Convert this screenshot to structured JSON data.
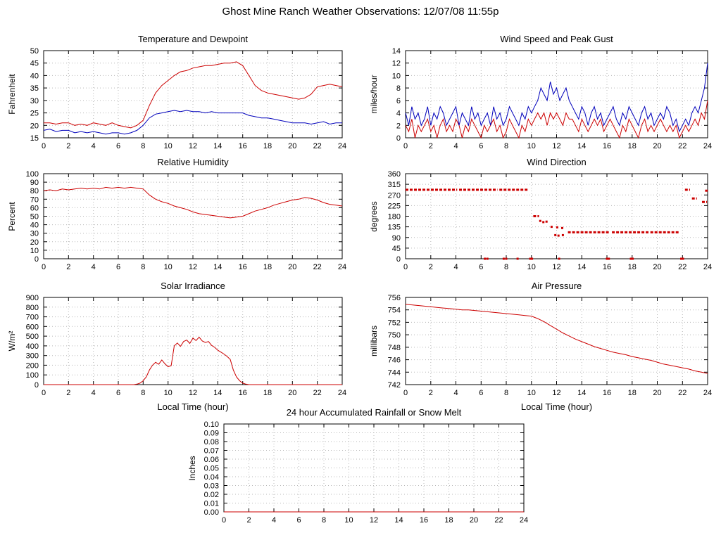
{
  "page": {
    "title": "Ghost Mine Ranch Weather Observations: 12/07/08 11:55p"
  },
  "chart_data": [
    {
      "type": "line",
      "title": "Temperature and Dewpoint",
      "ylabel": "Fahrenheit",
      "xlabel": "",
      "xlim": [
        0,
        24
      ],
      "ylim": [
        15,
        50
      ],
      "xticks": [
        0,
        2,
        4,
        6,
        8,
        10,
        12,
        14,
        16,
        18,
        20,
        22,
        24
      ],
      "xtick_labels": [
        "0",
        "2",
        "4",
        "6",
        "8",
        "10",
        "12",
        "14",
        "16",
        "18",
        "20",
        "22",
        "24"
      ],
      "yticks": [
        15,
        20,
        25,
        30,
        35,
        40,
        45,
        50
      ],
      "ytick_labels": [
        "15",
        "20",
        "25",
        "30",
        "35",
        "40",
        "45",
        "50"
      ],
      "series": [
        {
          "name": "temperature",
          "color": "#cc0000",
          "x0": 0,
          "dx": 0.5,
          "y": [
            21,
            21,
            20.5,
            21,
            21,
            20,
            20.5,
            20,
            21,
            20.5,
            20,
            21,
            20,
            19.5,
            19,
            20,
            22,
            28,
            33,
            36,
            38,
            40,
            41.5,
            42,
            43,
            43.5,
            44,
            44,
            44.5,
            45,
            45,
            45.5,
            44,
            40,
            36,
            34,
            33,
            32.5,
            32,
            31.5,
            31,
            30.5,
            31,
            32.5,
            35.5,
            36,
            36.5,
            36,
            35.5
          ]
        },
        {
          "name": "dewpoint",
          "color": "#0000bb",
          "x0": 0,
          "dx": 0.5,
          "y": [
            18,
            18.5,
            17.5,
            18,
            18,
            17,
            17.5,
            17,
            17.5,
            17,
            16.5,
            17,
            17,
            16.5,
            17,
            18,
            20,
            23,
            24.5,
            25,
            25.5,
            26,
            25.5,
            26,
            25.5,
            25.5,
            25,
            25.5,
            25,
            25,
            25,
            25,
            25,
            24,
            23.5,
            23,
            23,
            22.5,
            22,
            21.5,
            21,
            21,
            21,
            20.5,
            21,
            21.5,
            20.5,
            21,
            21
          ]
        }
      ]
    },
    {
      "type": "line",
      "title": "Wind Speed and Peak Gust",
      "ylabel": "miles/hour",
      "xlabel": "",
      "xlim": [
        0,
        24
      ],
      "ylim": [
        0,
        14
      ],
      "xticks": [
        0,
        2,
        4,
        6,
        8,
        10,
        12,
        14,
        16,
        18,
        20,
        22,
        24
      ],
      "xtick_labels": [
        "0",
        "2",
        "4",
        "6",
        "8",
        "10",
        "12",
        "14",
        "16",
        "18",
        "20",
        "22",
        "24"
      ],
      "yticks": [
        0,
        2,
        4,
        6,
        8,
        10,
        12,
        14
      ],
      "ytick_labels": [
        "0",
        "2",
        "4",
        "6",
        "8",
        "10",
        "12",
        "14"
      ],
      "series": [
        {
          "name": "wind-speed",
          "color": "#cc0000",
          "x0": 0,
          "dx": 0.25,
          "y": [
            2,
            1,
            3,
            0,
            2,
            1,
            2,
            3,
            1,
            2,
            0,
            2,
            3,
            1,
            2,
            1,
            3,
            2,
            0,
            2,
            1,
            3,
            2,
            1,
            0,
            2,
            1,
            2,
            3,
            1,
            2,
            0,
            1,
            3,
            2,
            1,
            0,
            2,
            1,
            3,
            2,
            3,
            4,
            3,
            4,
            2,
            4,
            3,
            4,
            3,
            2,
            4,
            3,
            3,
            2,
            1,
            3,
            2,
            1,
            2,
            3,
            2,
            3,
            1,
            2,
            3,
            2,
            1,
            0,
            2,
            1,
            3,
            2,
            1,
            0,
            2,
            3,
            1,
            2,
            1,
            2,
            3,
            2,
            1,
            2,
            1,
            2,
            0,
            1,
            2,
            1,
            2,
            3,
            2,
            4,
            3,
            6
          ]
        },
        {
          "name": "peak-gust",
          "color": "#0000bb",
          "x0": 0,
          "dx": 0.25,
          "y": [
            4,
            2,
            5,
            3,
            4,
            2,
            3,
            5,
            2,
            4,
            3,
            5,
            4,
            2,
            3,
            4,
            5,
            2,
            4,
            3,
            2,
            5,
            3,
            4,
            2,
            3,
            4,
            2,
            5,
            3,
            4,
            2,
            3,
            5,
            4,
            3,
            2,
            4,
            3,
            5,
            4,
            5,
            6,
            8,
            7,
            6,
            9,
            7,
            8,
            6,
            7,
            8,
            6,
            5,
            4,
            3,
            5,
            4,
            2,
            4,
            5,
            3,
            4,
            2,
            3,
            4,
            5,
            3,
            2,
            4,
            3,
            5,
            4,
            3,
            2,
            4,
            5,
            3,
            4,
            2,
            3,
            4,
            3,
            5,
            4,
            2,
            3,
            1,
            2,
            3,
            2,
            4,
            5,
            4,
            6,
            8,
            12
          ]
        }
      ]
    },
    {
      "type": "line",
      "title": "Relative Humidity",
      "ylabel": "Percent",
      "xlabel": "",
      "xlim": [
        0,
        24
      ],
      "ylim": [
        0,
        100
      ],
      "xticks": [
        0,
        2,
        4,
        6,
        8,
        10,
        12,
        14,
        16,
        18,
        20,
        22,
        24
      ],
      "xtick_labels": [
        "0",
        "2",
        "4",
        "6",
        "8",
        "10",
        "12",
        "14",
        "16",
        "18",
        "20",
        "22",
        "24"
      ],
      "yticks": [
        0,
        10,
        20,
        30,
        40,
        50,
        60,
        70,
        80,
        90,
        100
      ],
      "ytick_labels": [
        "0",
        "10",
        "20",
        "30",
        "40",
        "50",
        "60",
        "70",
        "80",
        "90",
        "100"
      ],
      "series": [
        {
          "name": "humidity",
          "color": "#cc0000",
          "x0": 0,
          "dx": 0.5,
          "y": [
            80,
            81,
            80,
            82,
            81,
            82,
            83,
            82,
            83,
            82,
            84,
            83,
            84,
            83,
            84,
            83,
            82,
            75,
            70,
            67,
            65,
            62,
            60,
            58,
            55,
            53,
            52,
            51,
            50,
            49,
            48,
            49,
            50,
            53,
            56,
            58,
            60,
            63,
            65,
            67,
            69,
            70,
            72,
            71,
            69,
            66,
            64,
            63,
            62
          ]
        }
      ]
    },
    {
      "type": "scatter",
      "title": "Wind Direction",
      "ylabel": "degrees",
      "xlabel": "",
      "xlim": [
        0,
        24
      ],
      "ylim": [
        0,
        360
      ],
      "xticks": [
        0,
        2,
        4,
        6,
        8,
        10,
        12,
        14,
        16,
        18,
        20,
        22,
        24
      ],
      "xtick_labels": [
        "0",
        "2",
        "4",
        "6",
        "8",
        "10",
        "12",
        "14",
        "16",
        "18",
        "20",
        "22",
        "24"
      ],
      "yticks": [
        0,
        45,
        90,
        135,
        180,
        225,
        270,
        315,
        360
      ],
      "ytick_labels": [
        "0",
        "45",
        "90",
        "135",
        "180",
        "225",
        "270",
        "315",
        "360"
      ],
      "mark_color": "#cc0000",
      "segments": [
        {
          "x0": 0.0,
          "x1": 4.1,
          "y": 292
        },
        {
          "x0": 4.25,
          "x1": 7.3,
          "y": 292
        },
        {
          "x0": 7.45,
          "x1": 9.7,
          "y": 292
        },
        {
          "x0": 10.15,
          "x1": 10.6,
          "y": 180
        },
        {
          "x0": 12.9,
          "x1": 16.2,
          "y": 112
        },
        {
          "x0": 16.4,
          "x1": 19.3,
          "y": 112
        },
        {
          "x0": 19.45,
          "x1": 21.7,
          "y": 112
        },
        {
          "x0": 22.2,
          "x1": 22.6,
          "y": 292
        },
        {
          "x0": 22.75,
          "x1": 23.15,
          "y": 255
        },
        {
          "x0": 23.55,
          "x1": 23.95,
          "y": 240
        },
        {
          "x0": 23.8,
          "x1": 24.0,
          "y": 288
        }
      ],
      "points": [
        {
          "x": 10.7,
          "y": 160
        },
        {
          "x": 10.95,
          "y": 155
        },
        {
          "x": 11.2,
          "y": 157
        },
        {
          "x": 11.6,
          "y": 135
        },
        {
          "x": 12.05,
          "y": 133
        },
        {
          "x": 12.45,
          "y": 130
        },
        {
          "x": 11.9,
          "y": 100
        },
        {
          "x": 12.15,
          "y": 98
        },
        {
          "x": 12.5,
          "y": 100
        },
        {
          "x": 6.3,
          "y": 0
        },
        {
          "x": 6.5,
          "y": 0
        },
        {
          "x": 7.8,
          "y": 0
        },
        {
          "x": 8.0,
          "y": 0
        },
        {
          "x": 8.9,
          "y": 0
        },
        {
          "x": 9.9,
          "y": 0
        },
        {
          "x": 10.05,
          "y": 0
        },
        {
          "x": 12.2,
          "y": 0
        },
        {
          "x": 16.0,
          "y": 0
        },
        {
          "x": 16.15,
          "y": 0
        },
        {
          "x": 17.9,
          "y": 0
        },
        {
          "x": 18.05,
          "y": 0
        },
        {
          "x": 21.9,
          "y": 0
        },
        {
          "x": 22.05,
          "y": 0
        }
      ]
    },
    {
      "type": "line",
      "title": "Solar Irradiance",
      "ylabel": "W/m²",
      "xlabel": "Local Time (hour)",
      "xlim": [
        0,
        24
      ],
      "ylim": [
        0,
        900
      ],
      "xticks": [
        0,
        2,
        4,
        6,
        8,
        10,
        12,
        14,
        16,
        18,
        20,
        22,
        24
      ],
      "xtick_labels": [
        "0",
        "2",
        "4",
        "6",
        "8",
        "10",
        "12",
        "14",
        "16",
        "18",
        "20",
        "22",
        "24"
      ],
      "yticks": [
        0,
        100,
        200,
        300,
        400,
        500,
        600,
        700,
        800,
        900
      ],
      "ytick_labels": [
        "0",
        "100",
        "200",
        "300",
        "400",
        "500",
        "600",
        "700",
        "800",
        "900"
      ],
      "series": [
        {
          "name": "solar-irradiance",
          "color": "#cc0000",
          "x0": 0,
          "dx": 0.25,
          "y": [
            0,
            0,
            0,
            0,
            0,
            0,
            0,
            0,
            0,
            0,
            0,
            0,
            0,
            0,
            0,
            0,
            0,
            0,
            0,
            0,
            0,
            0,
            0,
            0,
            0,
            0,
            0,
            0,
            0,
            0,
            5,
            15,
            40,
            80,
            150,
            200,
            230,
            210,
            255,
            215,
            185,
            195,
            400,
            430,
            395,
            445,
            460,
            425,
            480,
            455,
            490,
            450,
            435,
            445,
            405,
            385,
            355,
            335,
            315,
            290,
            260,
            150,
            80,
            40,
            15,
            5,
            0,
            0,
            0,
            0,
            0,
            0,
            0,
            0,
            0,
            0,
            0,
            0,
            0,
            0,
            0,
            0,
            0,
            0,
            0,
            0,
            0,
            0,
            0,
            0,
            0,
            0,
            0,
            0,
            0,
            0,
            0
          ]
        }
      ]
    },
    {
      "type": "line",
      "title": "Air Pressure",
      "ylabel": "millibars",
      "xlabel": "Local Time (hour)",
      "xlim": [
        0,
        24
      ],
      "ylim": [
        742,
        756
      ],
      "xticks": [
        0,
        2,
        4,
        6,
        8,
        10,
        12,
        14,
        16,
        18,
        20,
        22,
        24
      ],
      "xtick_labels": [
        "0",
        "2",
        "4",
        "6",
        "8",
        "10",
        "12",
        "14",
        "16",
        "18",
        "20",
        "22",
        "24"
      ],
      "yticks": [
        742,
        744,
        746,
        748,
        750,
        752,
        754,
        756
      ],
      "ytick_labels": [
        "742",
        "744",
        "746",
        "748",
        "750",
        "752",
        "754",
        "756"
      ],
      "series": [
        {
          "name": "air-pressure",
          "color": "#cc0000",
          "x0": 0,
          "dx": 0.5,
          "y": [
            754.9,
            754.8,
            754.7,
            754.6,
            754.5,
            754.4,
            754.3,
            754.2,
            754.1,
            754.0,
            754.0,
            753.9,
            753.8,
            753.7,
            753.6,
            753.5,
            753.4,
            753.3,
            753.2,
            753.1,
            753.0,
            752.6,
            752.1,
            751.5,
            750.9,
            750.3,
            749.8,
            749.3,
            748.9,
            748.5,
            748.1,
            747.8,
            747.5,
            747.2,
            747.0,
            746.8,
            746.5,
            746.3,
            746.1,
            745.9,
            745.6,
            745.3,
            745.1,
            744.9,
            744.7,
            744.5,
            744.2,
            744.0,
            743.8
          ]
        }
      ]
    },
    {
      "type": "line",
      "title": "24 hour Accumulated Rainfall or Snow Melt",
      "ylabel": "Inches",
      "xlabel": "",
      "xlim": [
        0,
        24
      ],
      "ylim": [
        0,
        0.1
      ],
      "xticks": [
        0,
        2,
        4,
        6,
        8,
        10,
        12,
        14,
        16,
        18,
        20,
        22,
        24
      ],
      "xtick_labels": [
        "0",
        "2",
        "4",
        "6",
        "8",
        "10",
        "12",
        "14",
        "16",
        "18",
        "20",
        "22",
        "24"
      ],
      "yticks": [
        0,
        0.01,
        0.02,
        0.03,
        0.04,
        0.05,
        0.06,
        0.07,
        0.08,
        0.09,
        0.1
      ],
      "ytick_labels": [
        "0.00",
        "0.01",
        "0.02",
        "0.03",
        "0.04",
        "0.05",
        "0.06",
        "0.07",
        "0.08",
        "0.09",
        "0.10"
      ],
      "series": [
        {
          "name": "rainfall",
          "color": "#cc0000",
          "x0": 0,
          "dx": 24,
          "y": [
            0,
            0
          ]
        }
      ]
    }
  ]
}
